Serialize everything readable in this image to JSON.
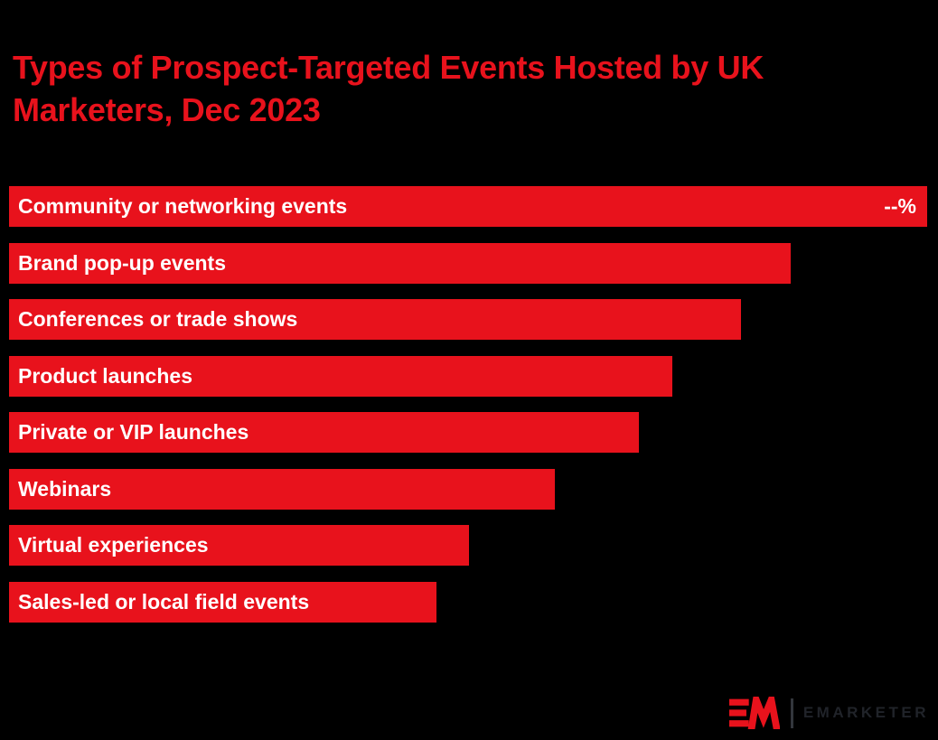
{
  "page": {
    "background_color": "#000000"
  },
  "title": {
    "lines": [
      "Types of Prospect-Targeted Events Hosted by UK",
      "Marketers, Dec 2023"
    ],
    "color": "#e8121c"
  },
  "chart_data": {
    "type": "bar",
    "orientation": "horizontal",
    "title": "Types of Prospect-Targeted Events Hosted by UK Marketers, Dec 2023",
    "categories": [
      "Community or networking events",
      "Brand pop-up events",
      "Conferences or trade shows",
      "Product launches",
      "Private or VIP launches",
      "Webinars",
      "Virtual experiences",
      "Sales-led or local field events"
    ],
    "values": [
      null,
      null,
      null,
      null,
      null,
      null,
      null,
      null
    ],
    "value_labels": [
      "--%",
      "",
      "",
      "",
      "",
      "",
      "",
      ""
    ],
    "values_visible": false,
    "relative_widths_pct": [
      100,
      85.1,
      79.7,
      72.2,
      68.6,
      59.4,
      50.1,
      46.6
    ],
    "bar_color": "#e8121c",
    "bar_label_color": "#ffffff",
    "legend": "none",
    "axes_visible": false
  },
  "branding": {
    "logo_mark": "em-logo",
    "wordmark": "EMARKETER",
    "mark_color": "#e8121c",
    "wordmark_color": "#202329",
    "divider_color": "#33363c"
  }
}
